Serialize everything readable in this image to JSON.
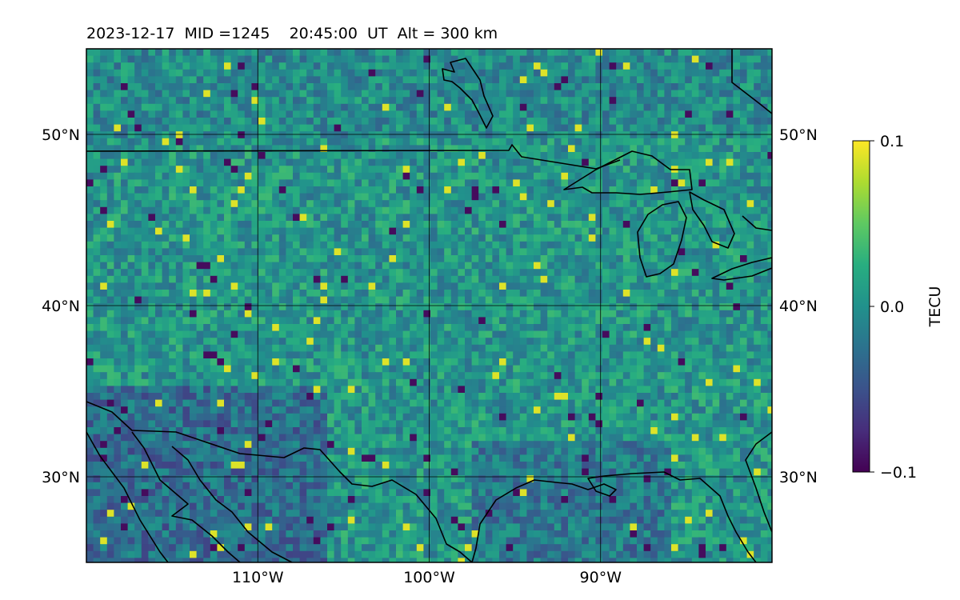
{
  "title": "2023-12-17  MID =1245    20:45:00  UT  Alt = 300 km",
  "map": {
    "lon_range": [
      -120,
      -80
    ],
    "lat_range": [
      25,
      55
    ],
    "lat_ticks": [
      {
        "value": 30,
        "label": "30°N"
      },
      {
        "value": 40,
        "label": "40°N"
      },
      {
        "value": 50,
        "label": "50°N"
      }
    ],
    "lon_ticks": [
      {
        "value": -110,
        "label": "110°W"
      },
      {
        "value": -100,
        "label": "100°W"
      },
      {
        "value": -90,
        "label": "90°W"
      }
    ],
    "grid": true,
    "colormap": "viridis",
    "coastline_color": "#000000"
  },
  "colorbar": {
    "label": "TECU",
    "min": -0.1,
    "max": 0.1,
    "ticks": [
      {
        "value": 0.1,
        "label": "0.1"
      },
      {
        "value": 0.0,
        "label": "0.0"
      },
      {
        "value": -0.1,
        "label": "−0.1"
      }
    ]
  }
}
